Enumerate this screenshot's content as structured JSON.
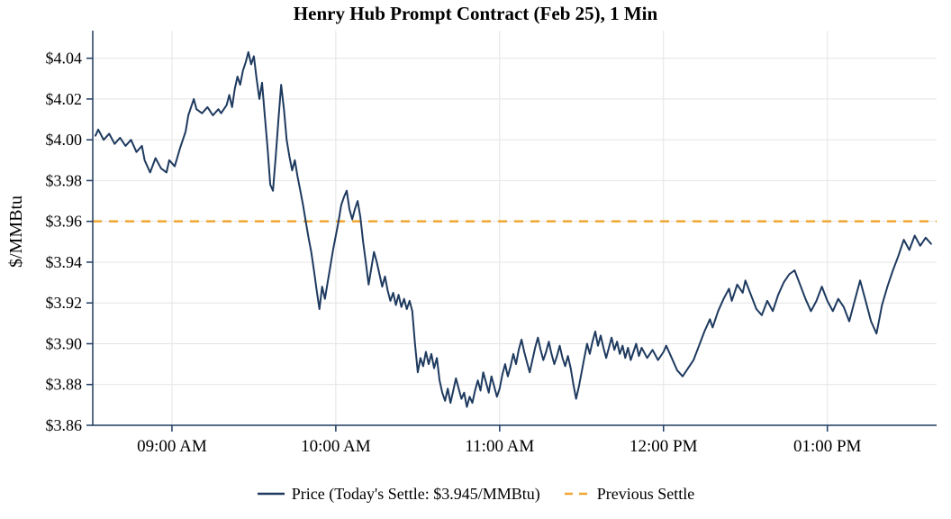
{
  "title": "Henry Hub Prompt Contract (Feb 25), 1 Min",
  "legend": {
    "price_label": "Price (Today's Settle: $3.945/MMBtu)",
    "settle_label": "Previous Settle"
  },
  "chart_data": {
    "type": "line",
    "title": "Henry Hub Prompt Contract (Feb 25), 1 Min",
    "xlabel": "",
    "ylabel": "$/MMBtu",
    "xlim": [
      511,
      820
    ],
    "ylim": [
      3.86,
      4.05
    ],
    "grid": true,
    "legend_position": "bottom",
    "previous_settle": 3.96,
    "todays_settle": 3.945,
    "x_axis": {
      "ticks": [
        540,
        600,
        660,
        720,
        780
      ],
      "labels": [
        "09:00 AM",
        "10:00 AM",
        "11:00 AM",
        "12:00 PM",
        "01:00 PM"
      ]
    },
    "y_axis": {
      "ticks": [
        3.86,
        3.88,
        3.9,
        3.92,
        3.94,
        3.96,
        3.98,
        4.0,
        4.02,
        4.04
      ],
      "labels": [
        "$3.86",
        "$3.88",
        "$3.90",
        "$3.92",
        "$3.94",
        "$3.96",
        "$3.98",
        "$4.00",
        "$4.02",
        "$4.04"
      ]
    },
    "colors": {
      "price": "#1e3a5f",
      "previous_settle": "#f0a632",
      "grid": "#e4e4e4",
      "axis": "#1e3a5f",
      "text": "#000000"
    },
    "series": [
      {
        "name": "Price",
        "units": "$/MMBtu",
        "x_units": "minutes-from-midnight",
        "points": [
          [
            512,
            4.002
          ],
          [
            513,
            4.005
          ],
          [
            515,
            4.0
          ],
          [
            517,
            4.003
          ],
          [
            519,
            3.998
          ],
          [
            521,
            4.001
          ],
          [
            523,
            3.997
          ],
          [
            525,
            4.0
          ],
          [
            527,
            3.994
          ],
          [
            529,
            3.997
          ],
          [
            530,
            3.99
          ],
          [
            532,
            3.984
          ],
          [
            534,
            3.991
          ],
          [
            536,
            3.986
          ],
          [
            538,
            3.984
          ],
          [
            539,
            3.99
          ],
          [
            541,
            3.987
          ],
          [
            543,
            3.996
          ],
          [
            545,
            4.004
          ],
          [
            546,
            4.012
          ],
          [
            548,
            4.02
          ],
          [
            549,
            4.015
          ],
          [
            551,
            4.013
          ],
          [
            553,
            4.016
          ],
          [
            555,
            4.012
          ],
          [
            557,
            4.015
          ],
          [
            558,
            4.013
          ],
          [
            560,
            4.017
          ],
          [
            561,
            4.022
          ],
          [
            562,
            4.016
          ],
          [
            563,
            4.025
          ],
          [
            564,
            4.031
          ],
          [
            565,
            4.027
          ],
          [
            566,
            4.034
          ],
          [
            567,
            4.038
          ],
          [
            568,
            4.043
          ],
          [
            569,
            4.037
          ],
          [
            570,
            4.041
          ],
          [
            571,
            4.03
          ],
          [
            572,
            4.02
          ],
          [
            573,
            4.028
          ],
          [
            574,
            4.012
          ],
          [
            575,
            3.996
          ],
          [
            576,
            3.978
          ],
          [
            577,
            3.975
          ],
          [
            578,
            3.992
          ],
          [
            579,
            4.01
          ],
          [
            580,
            4.027
          ],
          [
            581,
            4.015
          ],
          [
            582,
            4.0
          ],
          [
            583,
            3.992
          ],
          [
            584,
            3.985
          ],
          [
            585,
            3.99
          ],
          [
            586,
            3.982
          ],
          [
            587,
            3.975
          ],
          [
            588,
            3.968
          ],
          [
            589,
            3.96
          ],
          [
            590,
            3.952
          ],
          [
            591,
            3.945
          ],
          [
            592,
            3.936
          ],
          [
            593,
            3.926
          ],
          [
            594,
            3.917
          ],
          [
            595,
            3.928
          ],
          [
            596,
            3.922
          ],
          [
            597,
            3.93
          ],
          [
            598,
            3.938
          ],
          [
            599,
            3.946
          ],
          [
            600,
            3.953
          ],
          [
            601,
            3.96
          ],
          [
            602,
            3.968
          ],
          [
            603,
            3.972
          ],
          [
            604,
            3.975
          ],
          [
            605,
            3.966
          ],
          [
            606,
            3.961
          ],
          [
            607,
            3.966
          ],
          [
            608,
            3.97
          ],
          [
            609,
            3.962
          ],
          [
            610,
            3.95
          ],
          [
            611,
            3.94
          ],
          [
            612,
            3.929
          ],
          [
            613,
            3.937
          ],
          [
            614,
            3.945
          ],
          [
            615,
            3.94
          ],
          [
            616,
            3.934
          ],
          [
            617,
            3.928
          ],
          [
            618,
            3.933
          ],
          [
            619,
            3.926
          ],
          [
            620,
            3.921
          ],
          [
            621,
            3.925
          ],
          [
            622,
            3.919
          ],
          [
            623,
            3.924
          ],
          [
            624,
            3.918
          ],
          [
            625,
            3.922
          ],
          [
            626,
            3.917
          ],
          [
            627,
            3.921
          ],
          [
            628,
            3.916
          ],
          [
            629,
            3.9
          ],
          [
            630,
            3.886
          ],
          [
            631,
            3.893
          ],
          [
            632,
            3.889
          ],
          [
            633,
            3.896
          ],
          [
            634,
            3.89
          ],
          [
            635,
            3.895
          ],
          [
            636,
            3.888
          ],
          [
            637,
            3.893
          ],
          [
            638,
            3.882
          ],
          [
            639,
            3.876
          ],
          [
            640,
            3.872
          ],
          [
            641,
            3.878
          ],
          [
            642,
            3.871
          ],
          [
            643,
            3.877
          ],
          [
            644,
            3.883
          ],
          [
            645,
            3.878
          ],
          [
            646,
            3.873
          ],
          [
            647,
            3.876
          ],
          [
            648,
            3.869
          ],
          [
            649,
            3.874
          ],
          [
            650,
            3.871
          ],
          [
            651,
            3.877
          ],
          [
            652,
            3.882
          ],
          [
            653,
            3.877
          ],
          [
            654,
            3.886
          ],
          [
            655,
            3.881
          ],
          [
            656,
            3.876
          ],
          [
            657,
            3.884
          ],
          [
            658,
            3.879
          ],
          [
            659,
            3.874
          ],
          [
            660,
            3.878
          ],
          [
            661,
            3.885
          ],
          [
            662,
            3.89
          ],
          [
            663,
            3.884
          ],
          [
            664,
            3.889
          ],
          [
            665,
            3.895
          ],
          [
            666,
            3.89
          ],
          [
            667,
            3.897
          ],
          [
            668,
            3.902
          ],
          [
            669,
            3.896
          ],
          [
            670,
            3.891
          ],
          [
            671,
            3.886
          ],
          [
            672,
            3.892
          ],
          [
            673,
            3.898
          ],
          [
            674,
            3.903
          ],
          [
            675,
            3.897
          ],
          [
            676,
            3.892
          ],
          [
            677,
            3.896
          ],
          [
            678,
            3.901
          ],
          [
            679,
            3.895
          ],
          [
            680,
            3.89
          ],
          [
            681,
            3.894
          ],
          [
            682,
            3.899
          ],
          [
            683,
            3.893
          ],
          [
            684,
            3.889
          ],
          [
            685,
            3.894
          ],
          [
            686,
            3.888
          ],
          [
            687,
            3.88
          ],
          [
            688,
            3.873
          ],
          [
            689,
            3.879
          ],
          [
            690,
            3.886
          ],
          [
            691,
            3.893
          ],
          [
            692,
            3.9
          ],
          [
            693,
            3.895
          ],
          [
            694,
            3.901
          ],
          [
            695,
            3.906
          ],
          [
            696,
            3.899
          ],
          [
            697,
            3.904
          ],
          [
            698,
            3.898
          ],
          [
            699,
            3.893
          ],
          [
            700,
            3.898
          ],
          [
            701,
            3.903
          ],
          [
            702,
            3.897
          ],
          [
            703,
            3.901
          ],
          [
            704,
            3.895
          ],
          [
            705,
            3.899
          ],
          [
            706,
            3.893
          ],
          [
            707,
            3.898
          ],
          [
            708,
            3.892
          ],
          [
            709,
            3.896
          ],
          [
            710,
            3.9
          ],
          [
            711,
            3.894
          ],
          [
            712,
            3.898
          ],
          [
            714,
            3.893
          ],
          [
            716,
            3.897
          ],
          [
            718,
            3.892
          ],
          [
            720,
            3.896
          ],
          [
            721,
            3.899
          ],
          [
            723,
            3.893
          ],
          [
            725,
            3.887
          ],
          [
            727,
            3.884
          ],
          [
            729,
            3.888
          ],
          [
            731,
            3.892
          ],
          [
            733,
            3.899
          ],
          [
            735,
            3.906
          ],
          [
            737,
            3.912
          ],
          [
            738,
            3.908
          ],
          [
            740,
            3.916
          ],
          [
            742,
            3.922
          ],
          [
            744,
            3.927
          ],
          [
            745,
            3.921
          ],
          [
            747,
            3.929
          ],
          [
            749,
            3.925
          ],
          [
            750,
            3.931
          ],
          [
            752,
            3.924
          ],
          [
            754,
            3.917
          ],
          [
            756,
            3.914
          ],
          [
            758,
            3.921
          ],
          [
            760,
            3.916
          ],
          [
            762,
            3.924
          ],
          [
            764,
            3.93
          ],
          [
            766,
            3.934
          ],
          [
            768,
            3.936
          ],
          [
            770,
            3.929
          ],
          [
            772,
            3.922
          ],
          [
            774,
            3.916
          ],
          [
            776,
            3.921
          ],
          [
            778,
            3.928
          ],
          [
            780,
            3.921
          ],
          [
            782,
            3.916
          ],
          [
            784,
            3.922
          ],
          [
            786,
            3.918
          ],
          [
            788,
            3.911
          ],
          [
            790,
            3.921
          ],
          [
            792,
            3.931
          ],
          [
            794,
            3.921
          ],
          [
            796,
            3.911
          ],
          [
            798,
            3.905
          ],
          [
            800,
            3.919
          ],
          [
            802,
            3.928
          ],
          [
            804,
            3.936
          ],
          [
            806,
            3.943
          ],
          [
            808,
            3.951
          ],
          [
            810,
            3.946
          ],
          [
            812,
            3.953
          ],
          [
            814,
            3.948
          ],
          [
            816,
            3.952
          ],
          [
            818,
            3.949
          ]
        ]
      }
    ]
  }
}
